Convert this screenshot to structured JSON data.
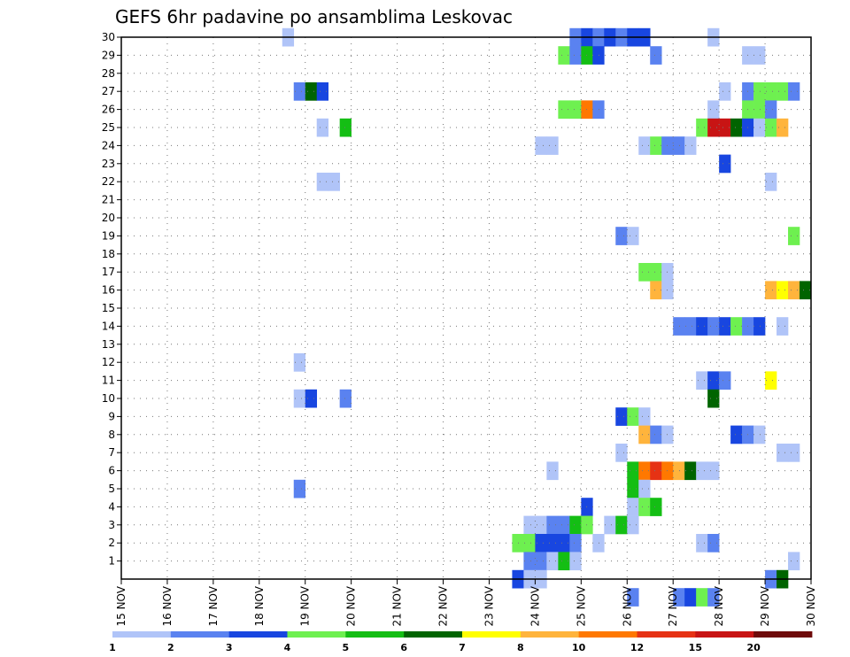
{
  "chart_data": {
    "type": "heatmap",
    "title": "GEFS 6hr padavine po ansamblima Leskovac",
    "x_ticks": [
      "15 NOV",
      "16 NOV",
      "17 NOV",
      "18 NOV",
      "19 NOV",
      "20 NOV",
      "21 NOV",
      "22 NOV",
      "23 NOV",
      "24 NOV",
      "25 NOV",
      "26 NOV",
      "27 NOV",
      "28 NOV",
      "29 NOV",
      "30 NOV"
    ],
    "x_range_days": [
      15,
      30
    ],
    "y_ticks": [
      "1",
      "2",
      "3",
      "4",
      "5",
      "6",
      "7",
      "8",
      "9",
      "10",
      "11",
      "12",
      "13",
      "14",
      "15",
      "16",
      "17",
      "18",
      "19",
      "20",
      "21",
      "22",
      "23",
      "24",
      "25",
      "26",
      "27",
      "28",
      "29",
      "30"
    ],
    "y_range": [
      0,
      30
    ],
    "grid": true,
    "legend_position": "bottom",
    "legend_labels": [
      "1",
      "2",
      "3",
      "4",
      "5",
      "6",
      "7",
      "8",
      "10",
      "12",
      "15",
      "20"
    ],
    "legend_colors": [
      "#b0c4f8",
      "#5a82f0",
      "#1846e0",
      "#6ef050",
      "#14be14",
      "#006400",
      "#ffff00",
      "#ffb43c",
      "#ff7800",
      "#e63214",
      "#c81414",
      "#6e0a0a"
    ],
    "color_levels": [
      "#b0c4f8",
      "#5a82f0",
      "#1846e0",
      "#6ef050",
      "#14be14",
      "#006400",
      "#ffff00",
      "#ffb43c",
      "#ff7800",
      "#e63214",
      "#c81414",
      "#6e0a0a"
    ],
    "cells_note": "each cell: [day, member, color_level_index]",
    "cells": [
      [
        18.5,
        30,
        0
      ],
      [
        24.75,
        30,
        1
      ],
      [
        25.0,
        30,
        2
      ],
      [
        25.25,
        30,
        1
      ],
      [
        25.5,
        30,
        2
      ],
      [
        25.75,
        30,
        1
      ],
      [
        26.0,
        30,
        2
      ],
      [
        26.25,
        30,
        2
      ],
      [
        27.75,
        30,
        0
      ],
      [
        24.5,
        29,
        3
      ],
      [
        24.75,
        29,
        1
      ],
      [
        25.0,
        29,
        4
      ],
      [
        25.25,
        29,
        2
      ],
      [
        26.5,
        29,
        1
      ],
      [
        28.5,
        29,
        0
      ],
      [
        28.75,
        29,
        0
      ],
      [
        18.75,
        27,
        1
      ],
      [
        19.0,
        27,
        5
      ],
      [
        19.25,
        27,
        2
      ],
      [
        28.0,
        27,
        0
      ],
      [
        28.5,
        27,
        1
      ],
      [
        28.75,
        27,
        3
      ],
      [
        29.0,
        27,
        3
      ],
      [
        29.25,
        27,
        3
      ],
      [
        29.5,
        27,
        1
      ],
      [
        24.5,
        26,
        3
      ],
      [
        24.75,
        26,
        3
      ],
      [
        25.0,
        26,
        8
      ],
      [
        25.25,
        26,
        1
      ],
      [
        27.75,
        26,
        0
      ],
      [
        28.5,
        26,
        3
      ],
      [
        28.75,
        26,
        3
      ],
      [
        29.0,
        26,
        1
      ],
      [
        19.25,
        25,
        0
      ],
      [
        19.75,
        25,
        4
      ],
      [
        27.5,
        25,
        3
      ],
      [
        27.75,
        25,
        10
      ],
      [
        28.0,
        25,
        10
      ],
      [
        28.25,
        25,
        5
      ],
      [
        28.5,
        25,
        2
      ],
      [
        28.75,
        25,
        0
      ],
      [
        29.0,
        25,
        3
      ],
      [
        29.25,
        25,
        7
      ],
      [
        24.0,
        24,
        0
      ],
      [
        24.25,
        24,
        0
      ],
      [
        26.25,
        24,
        0
      ],
      [
        26.5,
        24,
        3
      ],
      [
        26.75,
        24,
        1
      ],
      [
        27.0,
        24,
        1
      ],
      [
        27.25,
        24,
        0
      ],
      [
        28.0,
        23,
        2
      ],
      [
        19.25,
        22,
        0
      ],
      [
        19.5,
        22,
        0
      ],
      [
        29.0,
        22,
        0
      ],
      [
        25.75,
        19,
        1
      ],
      [
        26.0,
        19,
        0
      ],
      [
        29.5,
        19,
        3
      ],
      [
        26.25,
        17,
        3
      ],
      [
        26.5,
        17,
        3
      ],
      [
        26.75,
        17,
        0
      ],
      [
        26.5,
        16,
        7
      ],
      [
        26.75,
        16,
        0
      ],
      [
        29.0,
        16,
        7
      ],
      [
        29.25,
        16,
        6
      ],
      [
        29.5,
        16,
        7
      ],
      [
        29.75,
        16,
        5
      ],
      [
        27.0,
        14,
        1
      ],
      [
        27.25,
        14,
        1
      ],
      [
        27.5,
        14,
        2
      ],
      [
        27.75,
        14,
        1
      ],
      [
        28.0,
        14,
        2
      ],
      [
        28.25,
        14,
        3
      ],
      [
        28.5,
        14,
        1
      ],
      [
        28.75,
        14,
        2
      ],
      [
        29.25,
        14,
        0
      ],
      [
        18.75,
        12,
        0
      ],
      [
        27.5,
        11,
        0
      ],
      [
        27.75,
        11,
        2
      ],
      [
        28.0,
        11,
        1
      ],
      [
        29.0,
        11,
        6
      ],
      [
        18.75,
        10,
        0
      ],
      [
        19.0,
        10,
        2
      ],
      [
        19.75,
        10,
        1
      ],
      [
        27.75,
        10,
        5
      ],
      [
        25.75,
        9,
        2
      ],
      [
        26.0,
        9,
        3
      ],
      [
        26.25,
        9,
        0
      ],
      [
        26.25,
        8,
        7
      ],
      [
        26.5,
        8,
        1
      ],
      [
        26.75,
        8,
        0
      ],
      [
        28.25,
        8,
        2
      ],
      [
        28.5,
        8,
        1
      ],
      [
        28.75,
        8,
        0
      ],
      [
        25.75,
        7,
        0
      ],
      [
        29.25,
        7,
        0
      ],
      [
        29.5,
        7,
        0
      ],
      [
        24.25,
        6,
        0
      ],
      [
        26.0,
        6,
        4
      ],
      [
        26.25,
        6,
        8
      ],
      [
        26.5,
        6,
        9
      ],
      [
        26.75,
        6,
        8
      ],
      [
        27.0,
        6,
        7
      ],
      [
        27.25,
        6,
        5
      ],
      [
        27.5,
        6,
        0
      ],
      [
        27.75,
        6,
        0
      ],
      [
        18.75,
        5,
        1
      ],
      [
        26.0,
        5,
        4
      ],
      [
        26.25,
        5,
        0
      ],
      [
        25.0,
        4,
        2
      ],
      [
        26.0,
        4,
        0
      ],
      [
        26.25,
        4,
        3
      ],
      [
        26.5,
        4,
        4
      ],
      [
        23.75,
        3,
        0
      ],
      [
        24.0,
        3,
        0
      ],
      [
        24.25,
        3,
        1
      ],
      [
        24.5,
        3,
        1
      ],
      [
        24.75,
        3,
        4
      ],
      [
        25.0,
        3,
        3
      ],
      [
        25.5,
        3,
        0
      ],
      [
        25.75,
        3,
        4
      ],
      [
        26.0,
        3,
        0
      ],
      [
        23.5,
        2,
        3
      ],
      [
        23.75,
        2,
        3
      ],
      [
        24.0,
        2,
        2
      ],
      [
        24.25,
        2,
        2
      ],
      [
        24.5,
        2,
        2
      ],
      [
        24.75,
        2,
        1
      ],
      [
        25.25,
        2,
        0
      ],
      [
        27.5,
        2,
        0
      ],
      [
        27.75,
        2,
        1
      ],
      [
        23.75,
        1,
        1
      ],
      [
        24.0,
        1,
        1
      ],
      [
        24.25,
        1,
        0
      ],
      [
        24.5,
        1,
        4
      ],
      [
        24.75,
        1,
        0
      ],
      [
        29.5,
        1,
        0
      ],
      [
        23.5,
        0,
        2
      ],
      [
        23.75,
        0,
        0
      ],
      [
        24.0,
        0,
        0
      ],
      [
        29.0,
        0,
        1
      ],
      [
        29.25,
        0,
        5
      ],
      [
        26.0,
        -1,
        1
      ],
      [
        27.0,
        -1,
        1
      ],
      [
        27.25,
        -1,
        2
      ],
      [
        27.5,
        -1,
        3
      ],
      [
        27.75,
        -1,
        1
      ]
    ]
  }
}
